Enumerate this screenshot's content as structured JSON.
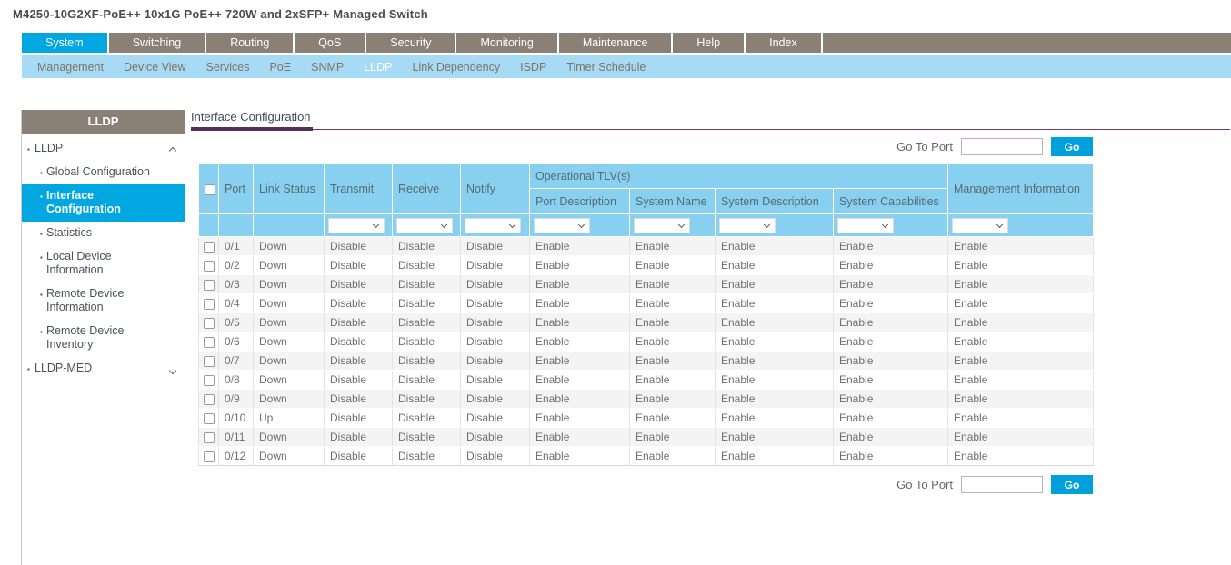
{
  "page_title": "M4250-10G2XF-PoE++ 10x1G PoE++ 720W and 2xSFP+ Managed Switch",
  "top_nav": {
    "tabs": [
      {
        "label": "System",
        "active": true
      },
      {
        "label": "Switching",
        "active": false
      },
      {
        "label": "Routing",
        "active": false
      },
      {
        "label": "QoS",
        "active": false
      },
      {
        "label": "Security",
        "active": false
      },
      {
        "label": "Monitoring",
        "active": false
      },
      {
        "label": "Maintenance",
        "active": false
      },
      {
        "label": "Help",
        "active": false
      },
      {
        "label": "Index",
        "active": false
      }
    ]
  },
  "sub_nav": {
    "items": [
      {
        "label": "Management",
        "active": false
      },
      {
        "label": "Device View",
        "active": false
      },
      {
        "label": "Services",
        "active": false
      },
      {
        "label": "PoE",
        "active": false
      },
      {
        "label": "SNMP",
        "active": false
      },
      {
        "label": "LLDP",
        "active": true
      },
      {
        "label": "Link Dependency",
        "active": false
      },
      {
        "label": "ISDP",
        "active": false
      },
      {
        "label": "Timer Schedule",
        "active": false
      }
    ]
  },
  "sidebar": {
    "header": "LLDP",
    "items": [
      {
        "label": "LLDP",
        "level": 1,
        "chevron": "up",
        "selected": false
      },
      {
        "label": "Global Configuration",
        "level": 2,
        "selected": false
      },
      {
        "label": "Interface Configuration",
        "level": 2,
        "selected": true
      },
      {
        "label": "Statistics",
        "level": 2,
        "selected": false
      },
      {
        "label": "Local Device Information",
        "level": 2,
        "selected": false
      },
      {
        "label": "Remote Device Information",
        "level": 2,
        "selected": false
      },
      {
        "label": "Remote Device Inventory",
        "level": 2,
        "selected": false
      },
      {
        "label": "LLDP-MED",
        "level": 1,
        "chevron": "down",
        "selected": false
      }
    ]
  },
  "main": {
    "title": "Interface Configuration",
    "go_to_port_label": "Go To Port",
    "go_input_value": "",
    "go_button_label": "Go",
    "table": {
      "group_header": "Operational TLV(s)",
      "columns": {
        "port": "Port",
        "link_status": "Link Status",
        "transmit": "Transmit",
        "receive": "Receive",
        "notify": "Notify",
        "port_description": "Port Description",
        "system_name": "System Name",
        "system_description": "System Description",
        "system_capabilities": "System Capabilities",
        "management_information": "Management Information"
      },
      "filter_columns": [
        "transmit",
        "receive",
        "notify",
        "port_description",
        "system_name",
        "system_description",
        "system_capabilities",
        "management_information"
      ],
      "filter_selected_values": [
        "",
        "",
        "",
        "",
        "",
        "",
        "",
        ""
      ],
      "rows": [
        {
          "port": "0/1",
          "link_status": "Down",
          "transmit": "Disable",
          "receive": "Disable",
          "notify": "Disable",
          "port_description": "Enable",
          "system_name": "Enable",
          "system_description": "Enable",
          "system_capabilities": "Enable",
          "management_information": "Enable"
        },
        {
          "port": "0/2",
          "link_status": "Down",
          "transmit": "Disable",
          "receive": "Disable",
          "notify": "Disable",
          "port_description": "Enable",
          "system_name": "Enable",
          "system_description": "Enable",
          "system_capabilities": "Enable",
          "management_information": "Enable"
        },
        {
          "port": "0/3",
          "link_status": "Down",
          "transmit": "Disable",
          "receive": "Disable",
          "notify": "Disable",
          "port_description": "Enable",
          "system_name": "Enable",
          "system_description": "Enable",
          "system_capabilities": "Enable",
          "management_information": "Enable"
        },
        {
          "port": "0/4",
          "link_status": "Down",
          "transmit": "Disable",
          "receive": "Disable",
          "notify": "Disable",
          "port_description": "Enable",
          "system_name": "Enable",
          "system_description": "Enable",
          "system_capabilities": "Enable",
          "management_information": "Enable"
        },
        {
          "port": "0/5",
          "link_status": "Down",
          "transmit": "Disable",
          "receive": "Disable",
          "notify": "Disable",
          "port_description": "Enable",
          "system_name": "Enable",
          "system_description": "Enable",
          "system_capabilities": "Enable",
          "management_information": "Enable"
        },
        {
          "port": "0/6",
          "link_status": "Down",
          "transmit": "Disable",
          "receive": "Disable",
          "notify": "Disable",
          "port_description": "Enable",
          "system_name": "Enable",
          "system_description": "Enable",
          "system_capabilities": "Enable",
          "management_information": "Enable"
        },
        {
          "port": "0/7",
          "link_status": "Down",
          "transmit": "Disable",
          "receive": "Disable",
          "notify": "Disable",
          "port_description": "Enable",
          "system_name": "Enable",
          "system_description": "Enable",
          "system_capabilities": "Enable",
          "management_information": "Enable"
        },
        {
          "port": "0/8",
          "link_status": "Down",
          "transmit": "Disable",
          "receive": "Disable",
          "notify": "Disable",
          "port_description": "Enable",
          "system_name": "Enable",
          "system_description": "Enable",
          "system_capabilities": "Enable",
          "management_information": "Enable"
        },
        {
          "port": "0/9",
          "link_status": "Down",
          "transmit": "Disable",
          "receive": "Disable",
          "notify": "Disable",
          "port_description": "Enable",
          "system_name": "Enable",
          "system_description": "Enable",
          "system_capabilities": "Enable",
          "management_information": "Enable"
        },
        {
          "port": "0/10",
          "link_status": "Up",
          "transmit": "Disable",
          "receive": "Disable",
          "notify": "Disable",
          "port_description": "Enable",
          "system_name": "Enable",
          "system_description": "Enable",
          "system_capabilities": "Enable",
          "management_information": "Enable"
        },
        {
          "port": "0/11",
          "link_status": "Down",
          "transmit": "Disable",
          "receive": "Disable",
          "notify": "Disable",
          "port_description": "Enable",
          "system_name": "Enable",
          "system_description": "Enable",
          "system_capabilities": "Enable",
          "management_information": "Enable"
        },
        {
          "port": "0/12",
          "link_status": "Down",
          "transmit": "Disable",
          "receive": "Disable",
          "notify": "Disable",
          "port_description": "Enable",
          "system_name": "Enable",
          "system_description": "Enable",
          "system_capabilities": "Enable",
          "management_information": "Enable"
        }
      ]
    }
  },
  "colors": {
    "accent_cyan": "#00a7e0",
    "nav_bar_brown": "#8a8075",
    "subnav_blue": "#a6daf5",
    "table_header_blue": "#87d0f0",
    "heading_purple": "#54315c",
    "go_button_blue": "#00a0dc"
  }
}
